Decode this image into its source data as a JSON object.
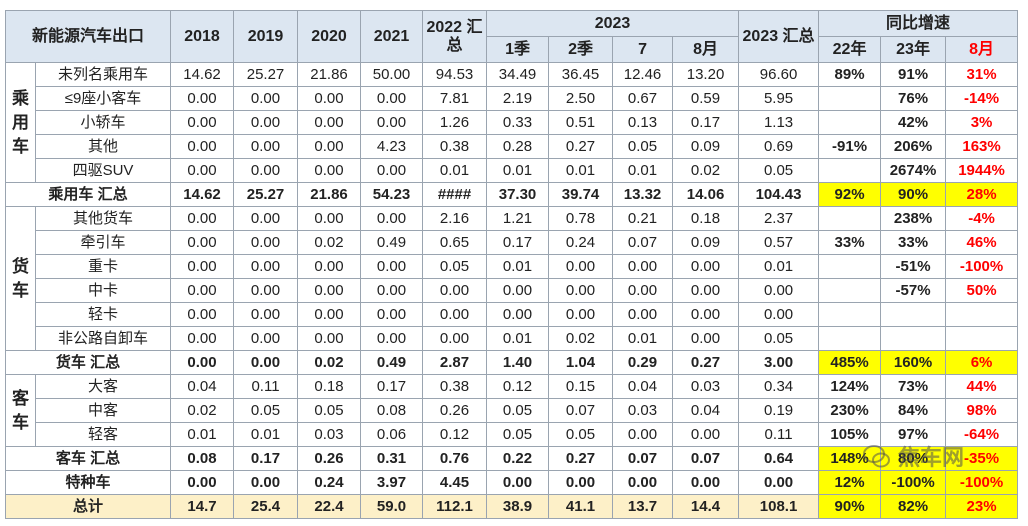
{
  "table": {
    "header": {
      "corner": "新能源汽车出口",
      "years": [
        "2018",
        "2019",
        "2020",
        "2021"
      ],
      "y2022": "2022 汇总",
      "y2023": "2023",
      "months": [
        "1季",
        "2季",
        "7",
        "8月"
      ],
      "y2023_total": "2023 汇总",
      "growth": "同比增速",
      "growth_cols": [
        "22年",
        "23年",
        "8月"
      ]
    },
    "sections": [
      {
        "label": "乘用车",
        "rows": [
          {
            "name": "未列名乘用车",
            "cells": [
              "14.62",
              "25.27",
              "21.86",
              "50.00",
              "94.53",
              "34.49",
              "36.45",
              "12.46",
              "13.20",
              "96.60",
              "89%",
              "91%",
              "31%"
            ]
          },
          {
            "name": "≤9座小客车",
            "cells": [
              "0.00",
              "0.00",
              "0.00",
              "0.00",
              "7.81",
              "2.19",
              "2.50",
              "0.67",
              "0.59",
              "5.95",
              null,
              "76%",
              "-14%"
            ]
          },
          {
            "name": "小轿车",
            "cells": [
              "0.00",
              "0.00",
              "0.00",
              "0.00",
              "1.26",
              "0.33",
              "0.51",
              "0.13",
              "0.17",
              "1.13",
              null,
              "42%",
              "3%"
            ]
          },
          {
            "name": "其他",
            "cells": [
              "0.00",
              "0.00",
              "0.00",
              "4.23",
              "0.38",
              "0.28",
              "0.27",
              "0.05",
              "0.09",
              "0.69",
              "-91%",
              "206%",
              "163%"
            ]
          },
          {
            "name": "四驱SUV",
            "cells": [
              "0.00",
              "0.00",
              "0.00",
              "0.00",
              "0.01",
              "0.01",
              "0.01",
              "0.01",
              "0.02",
              "0.05",
              null,
              "2674%",
              "1944%"
            ]
          }
        ],
        "subtotal": {
          "name": "乘用车 汇总",
          "cells": [
            "14.62",
            "25.27",
            "21.86",
            "54.23",
            "####",
            "37.30",
            "39.74",
            "13.32",
            "14.06",
            "104.43",
            "92%",
            "90%",
            "28%"
          ]
        }
      },
      {
        "label": "货车",
        "rows": [
          {
            "name": "其他货车",
            "cells": [
              "0.00",
              "0.00",
              "0.00",
              "0.00",
              "2.16",
              "1.21",
              "0.78",
              "0.21",
              "0.18",
              "2.37",
              null,
              "238%",
              "-4%"
            ]
          },
          {
            "name": "牵引车",
            "cells": [
              "0.00",
              "0.00",
              "0.02",
              "0.49",
              "0.65",
              "0.17",
              "0.24",
              "0.07",
              "0.09",
              "0.57",
              "33%",
              "33%",
              "46%"
            ]
          },
          {
            "name": "重卡",
            "cells": [
              "0.00",
              "0.00",
              "0.00",
              "0.00",
              "0.05",
              "0.01",
              "0.00",
              "0.00",
              "0.00",
              "0.01",
              null,
              "-51%",
              "-100%"
            ]
          },
          {
            "name": "中卡",
            "cells": [
              "0.00",
              "0.00",
              "0.00",
              "0.00",
              "0.00",
              "0.00",
              "0.00",
              "0.00",
              "0.00",
              "0.00",
              null,
              "-57%",
              "50%"
            ]
          },
          {
            "name": "轻卡",
            "cells": [
              "0.00",
              "0.00",
              "0.00",
              "0.00",
              "0.00",
              "0.00",
              "0.00",
              "0.00",
              "0.00",
              "0.00",
              null,
              null,
              null
            ]
          },
          {
            "name": "非公路自卸车",
            "cells": [
              "0.00",
              "0.00",
              "0.00",
              "0.00",
              "0.00",
              "0.01",
              "0.02",
              "0.01",
              "0.00",
              "0.05",
              null,
              null,
              null
            ]
          }
        ],
        "subtotal": {
          "name": "货车 汇总",
          "cells": [
            "0.00",
            "0.00",
            "0.02",
            "0.49",
            "2.87",
            "1.40",
            "1.04",
            "0.29",
            "0.27",
            "3.00",
            "485%",
            "160%",
            "6%"
          ]
        }
      },
      {
        "label": "客车",
        "rows": [
          {
            "name": "大客",
            "cells": [
              "0.04",
              "0.11",
              "0.18",
              "0.17",
              "0.38",
              "0.12",
              "0.15",
              "0.04",
              "0.03",
              "0.34",
              "124%",
              "73%",
              "44%"
            ]
          },
          {
            "name": "中客",
            "cells": [
              "0.02",
              "0.05",
              "0.05",
              "0.08",
              "0.26",
              "0.05",
              "0.07",
              "0.03",
              "0.04",
              "0.19",
              "230%",
              "84%",
              "98%"
            ]
          },
          {
            "name": "轻客",
            "cells": [
              "0.01",
              "0.01",
              "0.03",
              "0.06",
              "0.12",
              "0.05",
              "0.05",
              "0.00",
              "0.00",
              "0.11",
              "105%",
              "97%",
              "-64%"
            ]
          }
        ],
        "subtotal": {
          "name": "客车 汇总",
          "cells": [
            "0.08",
            "0.17",
            "0.26",
            "0.31",
            "0.76",
            "0.22",
            "0.27",
            "0.07",
            "0.07",
            "0.64",
            "148%",
            "80%",
            "-35%"
          ]
        }
      }
    ],
    "special": {
      "name": "特种车",
      "cells": [
        "0.00",
        "0.00",
        "0.24",
        "3.97",
        "4.45",
        "0.00",
        "0.00",
        "0.00",
        "0.00",
        "0.00",
        "12%",
        "-100%",
        "-100%"
      ]
    },
    "total": {
      "name": "总计",
      "cells": [
        "14.7",
        "25.4",
        "22.4",
        "59.0",
        "112.1",
        "38.9",
        "41.1",
        "13.7",
        "14.4",
        "108.1",
        "90%",
        "82%",
        "23%"
      ]
    }
  },
  "watermark": "焦车网"
}
